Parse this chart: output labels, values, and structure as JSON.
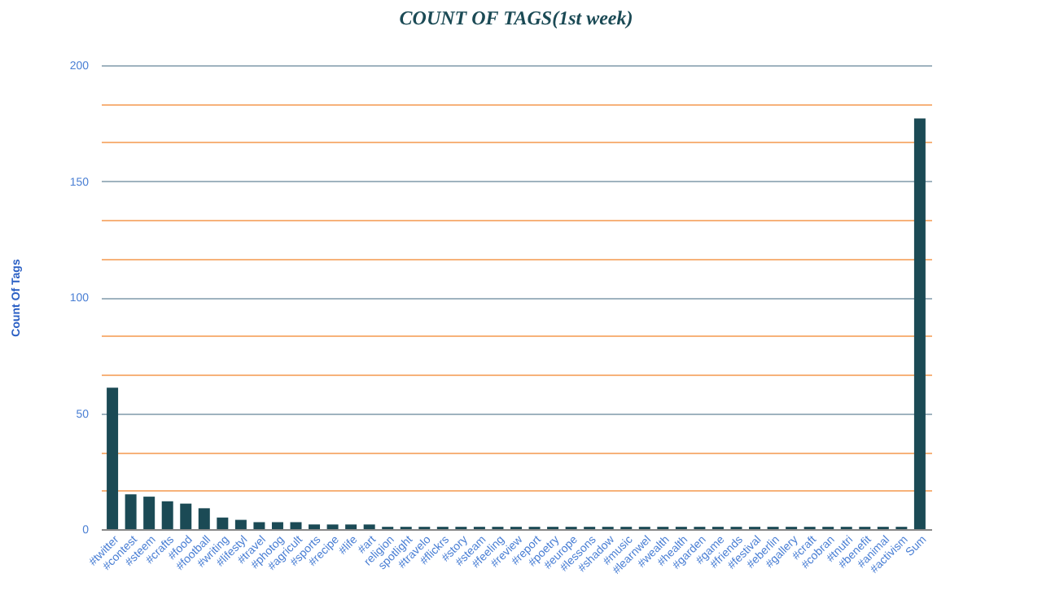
{
  "chart_data": {
    "type": "bar",
    "title": "COUNT OF TAGS(1st week)",
    "ylabel": "Count Of Tags",
    "categories": [
      "#twitter",
      "#contest",
      "#steem",
      "#crafts",
      "#food",
      "#football",
      "#writing",
      "#lifestyl",
      "#travel",
      "#photog",
      "#agricult",
      "#sports",
      "#recipe",
      "#life",
      "#art",
      "religion",
      "spotlight",
      "#travelo",
      "#flickrs",
      "#story",
      "#steam",
      "#feeling",
      "#review",
      "#report",
      "#poetry",
      "#europe",
      "#lessons",
      "#shadow",
      "#music",
      "#learnwel",
      "#wealth",
      "#health",
      "#garden",
      "#game",
      "#friends",
      "#festival",
      "#eberlin",
      "#gallery",
      "#craft",
      "#cobran",
      "#tnutri",
      "#benefit",
      "#animal",
      "#activism",
      "Sum"
    ],
    "values": [
      61,
      15,
      14,
      12,
      11,
      9,
      5,
      4,
      3,
      3,
      3,
      2,
      2,
      2,
      2,
      1,
      1,
      1,
      1,
      1,
      1,
      1,
      1,
      1,
      1,
      1,
      1,
      1,
      1,
      1,
      1,
      1,
      1,
      1,
      1,
      1,
      1,
      1,
      1,
      1,
      1,
      1,
      1,
      1,
      177
    ],
    "color": "#1b4a55",
    "ylim": [
      0,
      200
    ],
    "yticks": [
      0,
      {
        "value": 16.7,
        "label": null
      },
      {
        "value": 33.3,
        "label": null
      },
      50,
      {
        "value": 66.7,
        "label": null
      },
      {
        "value": 83.3,
        "label": null
      },
      100,
      {
        "value": 116.7,
        "label": null
      },
      {
        "value": 133.3,
        "label": null
      },
      150,
      {
        "value": 166.7,
        "label": null
      },
      {
        "value": 183.3,
        "label": null
      },
      200
    ],
    "grid": true
  }
}
